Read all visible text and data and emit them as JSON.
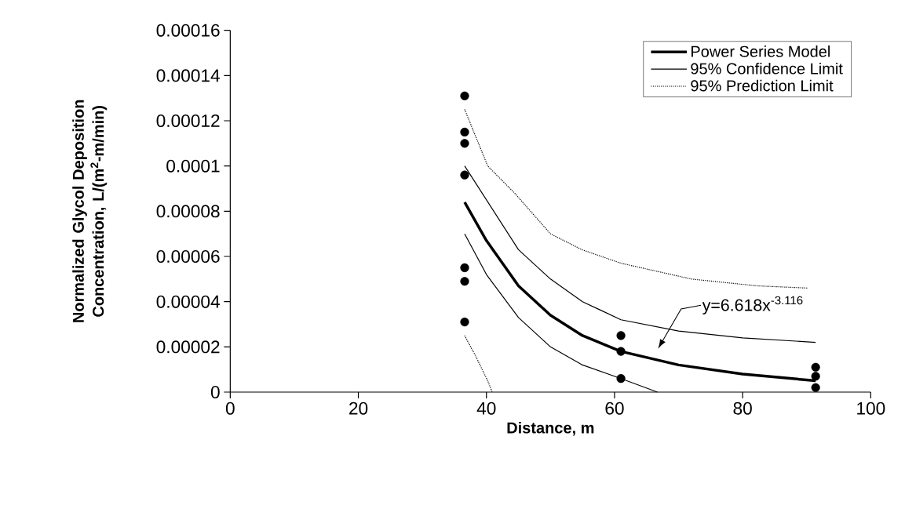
{
  "chart_data": {
    "type": "line",
    "xlabel": "Distance, m",
    "ylabel": "Normalized Glycol Deposition Concentration, L/(m$^{2}$-m/min)",
    "xlim": [
      0,
      100
    ],
    "ylim": [
      0,
      0.00016
    ],
    "xticks": [
      0,
      20,
      40,
      60,
      80,
      100
    ],
    "yticks": [
      {
        "value": 0,
        "label": "0"
      },
      {
        "value": 2e-05,
        "label": "0.00002"
      },
      {
        "value": 4e-05,
        "label": "0.00004"
      },
      {
        "value": 6e-05,
        "label": "0.00006"
      },
      {
        "value": 8e-05,
        "label": "0.00008"
      },
      {
        "value": 0.0001,
        "label": "0.0001"
      },
      {
        "value": 0.00012,
        "label": "0.00012"
      },
      {
        "value": 0.00014,
        "label": "0.00014"
      },
      {
        "value": 0.00016,
        "label": "0.00016"
      }
    ],
    "grid": false,
    "legend": "top right",
    "marker": "none",
    "series": [
      {
        "name": "Power Series Model",
        "line_style": "solid",
        "color": "#000000",
        "x": [
          36.6,
          40,
          45,
          50,
          55,
          61,
          70,
          80,
          91.4
        ],
        "values": [
          8.4e-05,
          6.7e-05,
          4.7e-05,
          3.4e-05,
          2.5e-05,
          1.8e-05,
          1.2e-05,
          8e-06,
          5e-06
        ]
      },
      {
        "name": "95% Confidence Limit",
        "line_style": "solid",
        "color": "#000000",
        "x": [
          36.6,
          45,
          50,
          55,
          61,
          70,
          80,
          91.4
        ],
        "values": [
          0.0001,
          6.3e-05,
          5e-05,
          4e-05,
          3.2e-05,
          2.7e-05,
          2.4e-05,
          2.2e-05
        ]
      },
      {
        "line_style": "solid",
        "color": "#000000",
        "x": [
          36.6,
          40,
          45,
          50,
          55,
          61,
          66.7
        ],
        "values": [
          7e-05,
          5.2e-05,
          3.3e-05,
          2e-05,
          1.2e-05,
          6e-06,
          0
        ]
      },
      {
        "name": "95% Prediction Limit",
        "line_style": "dotted",
        "color": "#000000",
        "x": [
          36.6,
          40.2,
          44.4,
          50,
          54.9,
          61,
          72,
          82.2,
          90.2
        ],
        "values": [
          0.000125,
          0.0001,
          8.8e-05,
          7e-05,
          6.3e-05,
          5.7e-05,
          5e-05,
          4.7e-05,
          4.6e-05
        ]
      },
      {
        "line_style": "dotted",
        "color": "#000000",
        "x": [
          36.6,
          38.3,
          40.2,
          40.9
        ],
        "values": [
          2.5e-05,
          1.6e-05,
          5e-06,
          0
        ]
      },
      {
        "type": "scatter",
        "marker": "circle",
        "color": "#000000",
        "x": [
          36.6,
          36.6,
          36.6,
          36.6,
          36.6,
          36.6,
          36.6,
          61,
          61,
          61,
          91.4,
          91.4,
          91.4
        ],
        "values": [
          0.000131,
          0.000115,
          0.00011,
          9.6e-05,
          5.5e-05,
          4.9e-05,
          3.1e-05,
          2.5e-05,
          1.8e-05,
          6e-06,
          1.1e-05,
          7e-06,
          2e-06
        ]
      }
    ],
    "annotations": [
      "y=6.618x$^{-3.116}$"
    ]
  }
}
